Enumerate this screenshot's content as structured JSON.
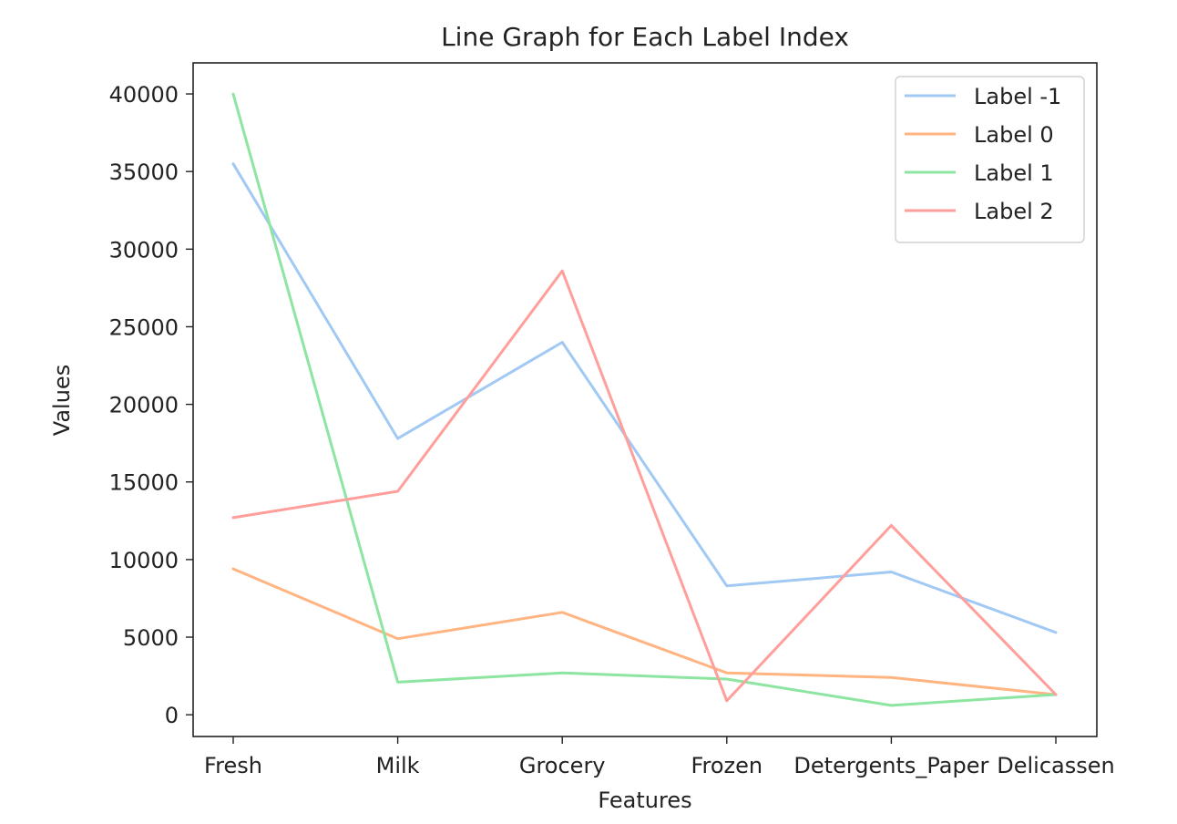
{
  "chart_data": {
    "type": "line",
    "title": "Line Graph for Each Label Index",
    "xlabel": "Features",
    "ylabel": "Values",
    "categories": [
      "Fresh",
      "Milk",
      "Grocery",
      "Frozen",
      "Detergents_Paper",
      "Delicassen"
    ],
    "ylim": [
      -1400,
      42000
    ],
    "yticks": [
      0,
      5000,
      10000,
      15000,
      20000,
      25000,
      30000,
      35000,
      40000
    ],
    "ytick_labels": [
      "0",
      "5000",
      "10000",
      "15000",
      "20000",
      "25000",
      "30000",
      "35000",
      "40000"
    ],
    "grid": false,
    "legend_position": "top-right",
    "series": [
      {
        "name": "Label -1",
        "color": "#a1c9f4",
        "values": [
          35500,
          17800,
          24000,
          8300,
          9200,
          5300
        ]
      },
      {
        "name": "Label 0",
        "color": "#ffb482",
        "values": [
          9400,
          4900,
          6600,
          2700,
          2400,
          1300
        ]
      },
      {
        "name": "Label 1",
        "color": "#8de5a1",
        "values": [
          40000,
          2100,
          2700,
          2300,
          600,
          1300
        ]
      },
      {
        "name": "Label 2",
        "color": "#ff9f9b",
        "values": [
          12700,
          14400,
          28600,
          900,
          12200,
          1300
        ]
      }
    ]
  }
}
